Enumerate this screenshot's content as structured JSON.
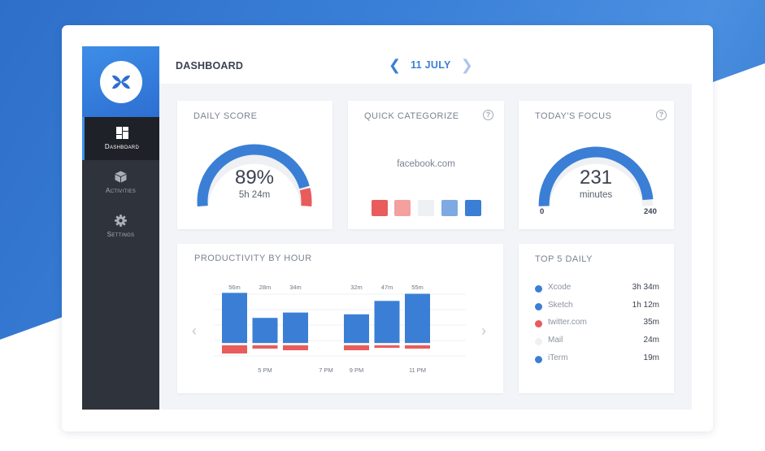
{
  "colors": {
    "accent": "#3a7fd5",
    "negative": "#e85c5c",
    "neutral": "#eef0f4",
    "sidebar": "#2f333b"
  },
  "header": {
    "title": "DASHBOARD",
    "date": "11 JULY",
    "prev_icon": "chevron-left-icon",
    "next_icon": "chevron-right-icon"
  },
  "sidebar": {
    "logo_icon": "butterfly-logo-icon",
    "items": [
      {
        "label": "Dashboard",
        "icon": "grid-icon",
        "active": true
      },
      {
        "label": "Activities",
        "icon": "cube-icon",
        "active": false
      },
      {
        "label": "Settings",
        "icon": "gear-icon",
        "active": false
      }
    ]
  },
  "daily_score": {
    "title": "DAILY SCORE",
    "value": "89%",
    "duration": "5h 24m",
    "fraction": 0.89
  },
  "quick_categorize": {
    "title": "QUICK CATEGORIZE",
    "site": "facebook.com",
    "help": "?",
    "options": [
      {
        "name": "very-distracting",
        "color": "#e85c5c"
      },
      {
        "name": "distracting",
        "color": "#f3a09f"
      },
      {
        "name": "neutral",
        "color": "#eef0f4"
      },
      {
        "name": "productive",
        "color": "#7fa9e3"
      },
      {
        "name": "very-productive",
        "color": "#3a7fd5"
      }
    ]
  },
  "todays_focus": {
    "title": "TODAY'S FOCUS",
    "value": "231",
    "unit": "minutes",
    "min": "0",
    "max": "240",
    "help": "?",
    "current": 231,
    "max_value": 240
  },
  "chart_data": {
    "type": "bar",
    "title": "PRODUCTIVITY BY HOUR",
    "slots": [
      {
        "label": "56m",
        "productive": 56,
        "distracting": 10
      },
      {
        "label": "28m",
        "productive": 28,
        "distracting": 4
      },
      {
        "label": "34m",
        "productive": 34,
        "distracting": 6
      },
      {
        "label": "",
        "productive": 0,
        "distracting": 0
      },
      {
        "label": "32m",
        "productive": 32,
        "distracting": 6
      },
      {
        "label": "47m",
        "productive": 47,
        "distracting": 3
      },
      {
        "label": "55m",
        "productive": 55,
        "distracting": 4
      }
    ],
    "x_ticks": [
      "5 PM",
      "7 PM",
      "9 PM",
      "11 PM"
    ],
    "ylim": [
      0,
      60
    ],
    "grid": true
  },
  "top5": {
    "title": "TOP 5 DAILY",
    "items": [
      {
        "name": "Xcode",
        "time": "3h 34m",
        "color": "#3a7fd5"
      },
      {
        "name": "Sketch",
        "time": "1h 12m",
        "color": "#3a7fd5"
      },
      {
        "name": "twitter.com",
        "time": "35m",
        "color": "#e85c5c"
      },
      {
        "name": "Mail",
        "time": "24m",
        "color": "#eef0f4"
      },
      {
        "name": "iTerm",
        "time": "19m",
        "color": "#3a7fd5"
      }
    ]
  }
}
